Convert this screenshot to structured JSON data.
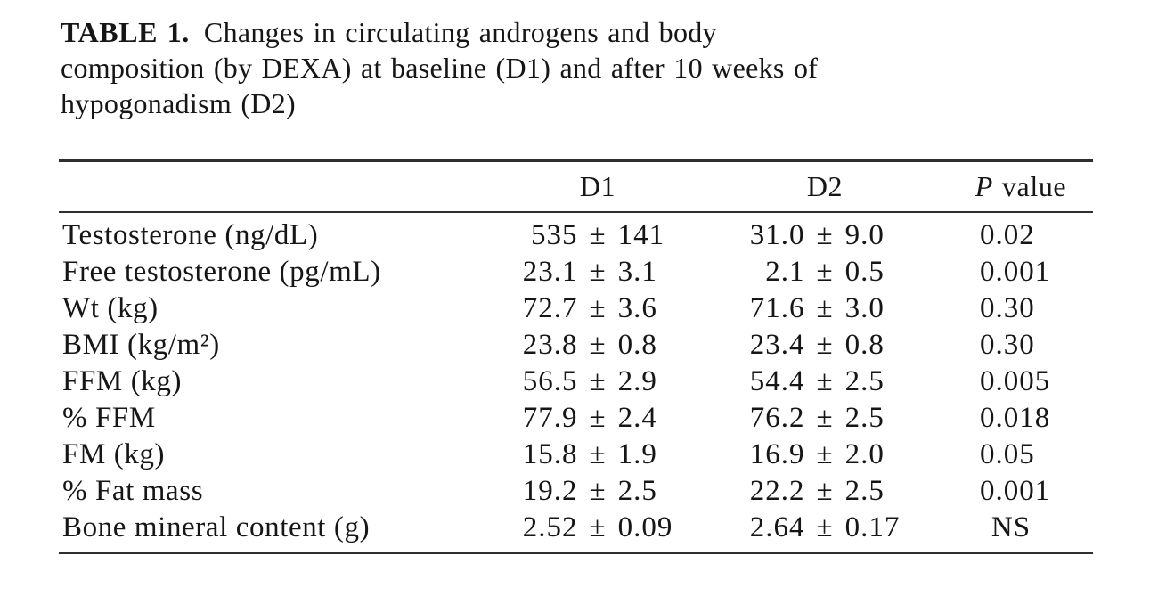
{
  "title": {
    "label": "TABLE 1.",
    "line1": "Changes in circulating androgens and body",
    "line2": "composition (by DEXA) at baseline (D1) and after 10 weeks of",
    "line3": "hypogonadism (D2)"
  },
  "table": {
    "pm": "±",
    "head": {
      "parameter": "",
      "d1": "D1",
      "d2": "D2",
      "p_italic": "P",
      "p_rest": "value"
    },
    "rows": [
      {
        "label": "Testosterone (ng/dL)",
        "d1m": "535",
        "d1s": "141",
        "d2m": "31.0",
        "d2s": "9.0",
        "p": "0.02"
      },
      {
        "label": "Free testosterone (pg/mL)",
        "d1m": "23.1",
        "d1s": "3.1",
        "d2m": "2.1",
        "d2s": "0.5",
        "p": "0.001"
      },
      {
        "label": "Wt (kg)",
        "d1m": "72.7",
        "d1s": "3.6",
        "d2m": "71.6",
        "d2s": "3.0",
        "p": "0.30"
      },
      {
        "label": "BMI (kg/m²)",
        "d1m": "23.8",
        "d1s": "0.8",
        "d2m": "23.4",
        "d2s": "0.8",
        "p": "0.30"
      },
      {
        "label": "FFM (kg)",
        "d1m": "56.5",
        "d1s": "2.9",
        "d2m": "54.4",
        "d2s": "2.5",
        "p": "0.005"
      },
      {
        "label": "% FFM",
        "d1m": "77.9",
        "d1s": "2.4",
        "d2m": "76.2",
        "d2s": "2.5",
        "p": "0.018"
      },
      {
        "label": "FM (kg)",
        "d1m": "15.8",
        "d1s": "1.9",
        "d2m": "16.9",
        "d2s": "2.0",
        "p": "0.05"
      },
      {
        "label": "% Fat mass",
        "d1m": "19.2",
        "d1s": "2.5",
        "d2m": "22.2",
        "d2s": "2.5",
        "p": "0.001"
      },
      {
        "label": "Bone mineral content (g)",
        "d1m": "2.52",
        "d1s": "0.09",
        "d2m": "2.64",
        "d2s": "0.17",
        "p": "NS"
      }
    ]
  }
}
